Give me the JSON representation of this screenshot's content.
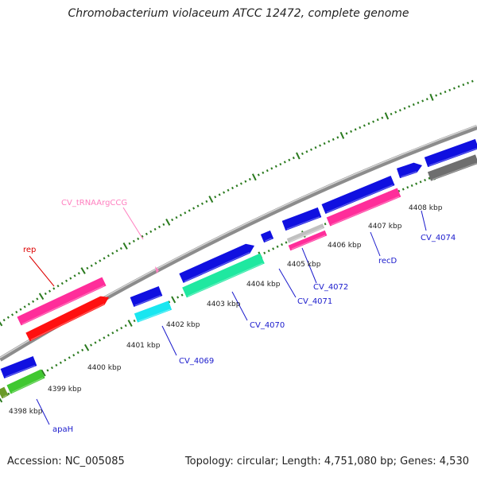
{
  "title": "Chromobacterium violaceum ATCC 12472, complete genome",
  "accession": "Accession: NC_005085",
  "summary": "Topology: circular; Length: 4,751,080 bp; Genes: 4,530",
  "scale_labels": [
    "4398 kbp",
    "4399 kbp",
    "4400 kbp",
    "4401 kbp",
    "4402 kbp",
    "4403 kbp",
    "4404 kbp",
    "4405 kbp",
    "4406 kbp",
    "4407 kbp",
    "4408 kbp"
  ],
  "gene_labels": {
    "trna": "CV_tRNAArgCCG",
    "rep": "rep",
    "cv4069": "CV_4069",
    "cv4070": "CV_4070",
    "cv4071": "CV_4071",
    "cv4072": "CV_4072",
    "recd": "recD",
    "cv4074": "CV_4074",
    "apah": "apaH"
  },
  "colors": {
    "backbone": "#8c8c8c",
    "tick": "#2a7a1e",
    "cds_blue": "#1010e0",
    "pink": "#ff2d9a",
    "red": "#ff1010",
    "cyan": "#19e6f0",
    "mint": "#1fe8a0",
    "green": "#40c830",
    "olive": "#6a9a28",
    "dark_gray": "#6e6e6e",
    "light_gray": "#c0c0c0",
    "label_blue": "#1a1acc",
    "label_red": "#dd0000",
    "label_pink": "#ff80c0"
  }
}
